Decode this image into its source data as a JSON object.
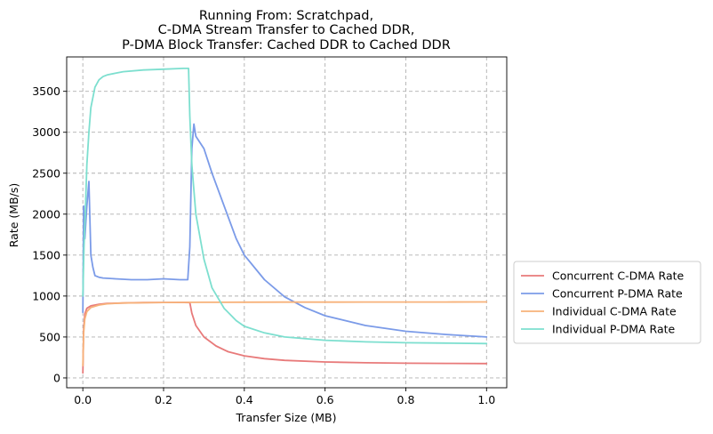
{
  "chart_data": {
    "type": "line",
    "title": [
      "Running From: Scratchpad,",
      "C-DMA Stream Transfer to Cached DDR,",
      "P-DMA Block Transfer: Cached DDR to Cached DDR"
    ],
    "xlabel": "Transfer Size (MB)",
    "ylabel": "Rate (MB/s)",
    "xlim": [
      -0.04,
      1.05
    ],
    "ylim": [
      -120,
      3920
    ],
    "xticks": [
      0.0,
      0.2,
      0.4,
      0.6,
      0.8,
      1.0
    ],
    "xtick_labels": [
      "0.0",
      "0.2",
      "0.4",
      "0.6",
      "0.8",
      "1.0"
    ],
    "yticks": [
      0,
      500,
      1000,
      1500,
      2000,
      2500,
      3000,
      3500
    ],
    "ytick_labels": [
      "0",
      "500",
      "1000",
      "1500",
      "2000",
      "2500",
      "3000",
      "3500"
    ],
    "grid": true,
    "legend_position": "outside-right-bottom",
    "series": [
      {
        "name": "Concurrent C-DMA Rate",
        "color": "#e87a7a",
        "x": [
          0.0,
          0.002,
          0.005,
          0.01,
          0.02,
          0.04,
          0.06,
          0.1,
          0.15,
          0.2,
          0.25,
          0.265,
          0.27,
          0.28,
          0.3,
          0.33,
          0.36,
          0.4,
          0.45,
          0.5,
          0.6,
          0.7,
          0.8,
          0.9,
          1.0
        ],
        "y": [
          60,
          600,
          780,
          850,
          880,
          900,
          910,
          915,
          920,
          922,
          922,
          920,
          790,
          640,
          500,
          390,
          320,
          270,
          235,
          215,
          195,
          185,
          180,
          178,
          175
        ]
      },
      {
        "name": "Concurrent P-DMA Rate",
        "color": "#7b9be8",
        "x": [
          0.0,
          0.002,
          0.005,
          0.01,
          0.015,
          0.02,
          0.025,
          0.03,
          0.04,
          0.05,
          0.08,
          0.12,
          0.16,
          0.2,
          0.24,
          0.26,
          0.265,
          0.27,
          0.275,
          0.28,
          0.3,
          0.32,
          0.35,
          0.38,
          0.4,
          0.45,
          0.5,
          0.55,
          0.6,
          0.7,
          0.8,
          0.9,
          1.0
        ],
        "y": [
          800,
          2100,
          1700,
          2100,
          2400,
          1500,
          1350,
          1250,
          1230,
          1220,
          1210,
          1200,
          1200,
          1210,
          1200,
          1200,
          1600,
          2800,
          3100,
          2950,
          2800,
          2500,
          2100,
          1700,
          1500,
          1200,
          990,
          860,
          760,
          640,
          570,
          530,
          500
        ]
      },
      {
        "name": "Individual C-DMA Rate",
        "color": "#f7b27a",
        "x": [
          0.0,
          0.002,
          0.005,
          0.01,
          0.02,
          0.04,
          0.06,
          0.1,
          0.2,
          0.3,
          0.4,
          0.5,
          0.6,
          0.7,
          0.8,
          0.9,
          1.0
        ],
        "y": [
          150,
          550,
          720,
          810,
          860,
          890,
          905,
          915,
          922,
          924,
          925,
          926,
          926,
          927,
          927,
          927,
          928
        ]
      },
      {
        "name": "Individual P-DMA Rate",
        "color": "#7ddfcf",
        "x": [
          0.0,
          0.003,
          0.006,
          0.01,
          0.015,
          0.02,
          0.03,
          0.04,
          0.05,
          0.06,
          0.08,
          0.1,
          0.15,
          0.2,
          0.25,
          0.262,
          0.265,
          0.27,
          0.28,
          0.3,
          0.32,
          0.35,
          0.38,
          0.4,
          0.45,
          0.5,
          0.6,
          0.7,
          0.8,
          0.9,
          1.0
        ],
        "y": [
          1000,
          1600,
          2000,
          2600,
          3000,
          3300,
          3550,
          3640,
          3680,
          3700,
          3720,
          3740,
          3760,
          3770,
          3780,
          3780,
          3200,
          2600,
          2000,
          1450,
          1100,
          850,
          700,
          630,
          550,
          500,
          460,
          440,
          430,
          425,
          420
        ]
      }
    ]
  }
}
